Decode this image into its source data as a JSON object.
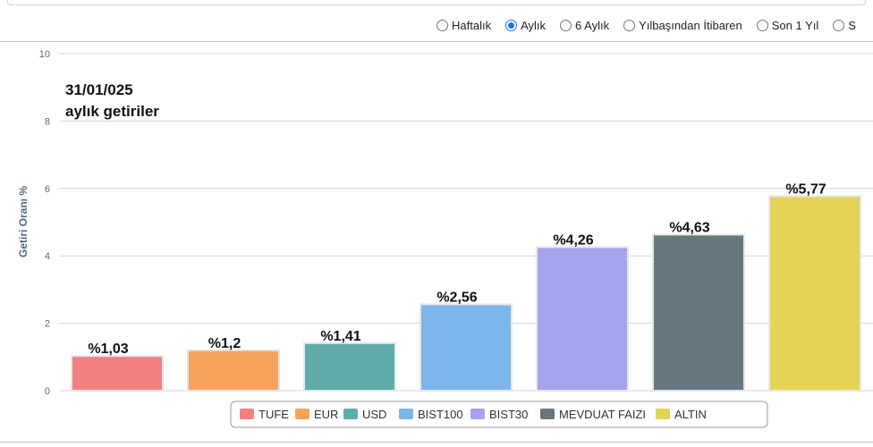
{
  "periods": [
    {
      "label": "Haftalık",
      "checked": false
    },
    {
      "label": "Aylık",
      "checked": true
    },
    {
      "label": "6 Aylık",
      "checked": false
    },
    {
      "label": "Yılbaşından İtibaren",
      "checked": false
    },
    {
      "label": "Son 1 Yıl",
      "checked": false
    },
    {
      "label": "S",
      "checked": false
    }
  ],
  "chart_data": {
    "type": "bar",
    "title": "31/01/025",
    "subtitle": "aylık getiriler",
    "xlabel": "",
    "ylabel": "Getiri Oranı %",
    "ylim": [
      0,
      10
    ],
    "yticks": [
      0,
      2,
      4,
      6,
      8,
      10
    ],
    "grid": true,
    "legend": "bottom",
    "categories": [
      "TUFE",
      "EUR",
      "USD",
      "BIST100",
      "BIST30",
      "MEVDUAT FAIZI",
      "ALTIN"
    ],
    "values": [
      1.03,
      1.2,
      1.41,
      2.56,
      4.26,
      4.63,
      5.77
    ],
    "data_labels": [
      "%1,03",
      "%1,2",
      "%1,41",
      "%2,56",
      "%4,26",
      "%4,63",
      "%5,77"
    ],
    "colors": [
      "#f28080",
      "#f7a35c",
      "#5fada9",
      "#7cb5ec",
      "#a3a3ee",
      "#66777e",
      "#e4d354"
    ]
  }
}
